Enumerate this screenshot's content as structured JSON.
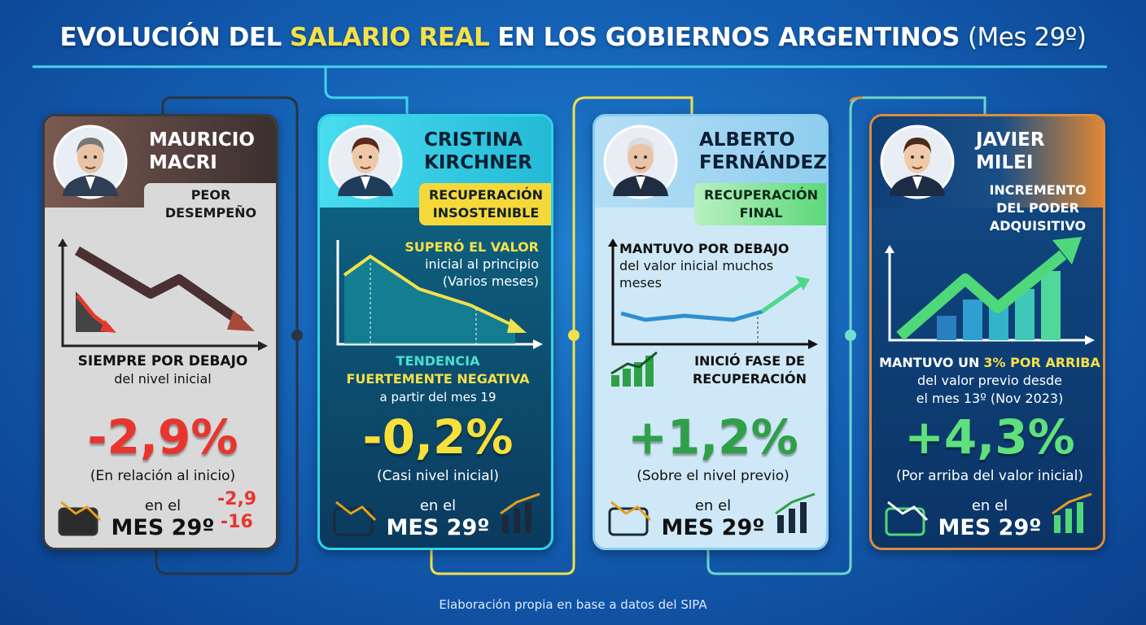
{
  "title": {
    "before": "EVOLUCIÓN DEL",
    "highlight": "SALARIO REAL",
    "after": "EN LOS GOBIERNOS ARGENTINOS",
    "suffix": "(Mes 29º)"
  },
  "cards": [
    {
      "name": [
        "MAURICIO",
        "MACRI"
      ],
      "tag": [
        "PEOR",
        "DESEMPEÑO"
      ],
      "summary": [
        "SIEMPRE POR DEBAJO",
        "del nivel inicial"
      ],
      "value": "-2,9%",
      "note": "(En relación al inicio)",
      "period_prefix": "en el",
      "period": "MES 29º",
      "icon_labels": [
        "-2,9",
        "-16"
      ]
    },
    {
      "name": [
        "CRISTINA",
        "KIRCHNER"
      ],
      "tag": [
        "RECUPERACIÓN",
        "INSOSTENIBLE"
      ],
      "chart_note": [
        "SUPERÓ EL VALOR",
        "inicial al principio",
        "(Varios meses)"
      ],
      "summary": [
        "TENDENCIA",
        "FUERTEMENTE NEGATIVA",
        "a partir del mes 19"
      ],
      "value": "-0,2%",
      "note": "(Casi nivel inicial)",
      "period_prefix": "en el",
      "period": "MES 29º"
    },
    {
      "name": [
        "ALBERTO",
        "FERNÁNDEZ"
      ],
      "tag": [
        "RECUPERACIÓN",
        "FINAL"
      ],
      "chart_note": [
        "MANTUVO POR DEBAJO",
        "del valor inicial muchos",
        "meses"
      ],
      "summary": [
        "INICIÓ FASE DE",
        "RECUPERACIÓN"
      ],
      "value": "+1,2%",
      "note": "(Sobre el nivel previo)",
      "period_prefix": "en el",
      "period": "MES 29º"
    },
    {
      "name": [
        "JAVIER",
        "MILEI"
      ],
      "tag": [
        "INCREMENTO",
        "DEL PODER",
        "ADQUISITIVO"
      ],
      "summary": [
        {
          "text": "MANTUVO UN",
          "highlight": "3% POR ARRIBA"
        },
        "del valor previo desde",
        "el mes 13º (Nov 2023)"
      ],
      "value": "+4,3%",
      "note": "(Por arriba del valor inicial)",
      "period_prefix": "en el",
      "period": "MES 29º"
    }
  ],
  "footer": "Elaboración propia en base a datos del SIPA"
}
